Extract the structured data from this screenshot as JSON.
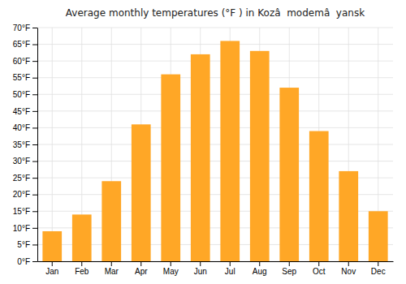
{
  "chart_data": {
    "type": "bar",
    "title": "Average monthly temperatures (°F ) in Kozâ  modemâ  yansk",
    "categories": [
      "Jan",
      "Feb",
      "Mar",
      "Apr",
      "May",
      "Jun",
      "Jul",
      "Aug",
      "Sep",
      "Oct",
      "Nov",
      "Dec"
    ],
    "values": [
      9,
      14,
      24,
      41,
      56,
      62,
      66,
      63,
      52,
      39,
      27,
      15
    ],
    "color": "#FFA726",
    "ylim": [
      0,
      70
    ],
    "yticks": [
      {
        "value": 0,
        "label": "0°F"
      },
      {
        "value": 5,
        "label": "5°F"
      },
      {
        "value": 10,
        "label": "10°F"
      },
      {
        "value": 15,
        "label": "15°F"
      },
      {
        "value": 20,
        "label": "20°F"
      },
      {
        "value": 25,
        "label": "25°F"
      },
      {
        "value": 30,
        "label": "30°F"
      },
      {
        "value": 35,
        "label": "35°F"
      },
      {
        "value": 40,
        "label": "40°F"
      },
      {
        "value": 45,
        "label": "45°F"
      },
      {
        "value": 50,
        "label": "50°F"
      },
      {
        "value": 55,
        "label": "55°F"
      },
      {
        "value": 60,
        "label": "60°F"
      },
      {
        "value": 65,
        "label": "65°F"
      },
      {
        "value": 70,
        "label": "70°F"
      }
    ],
    "grid": true
  }
}
